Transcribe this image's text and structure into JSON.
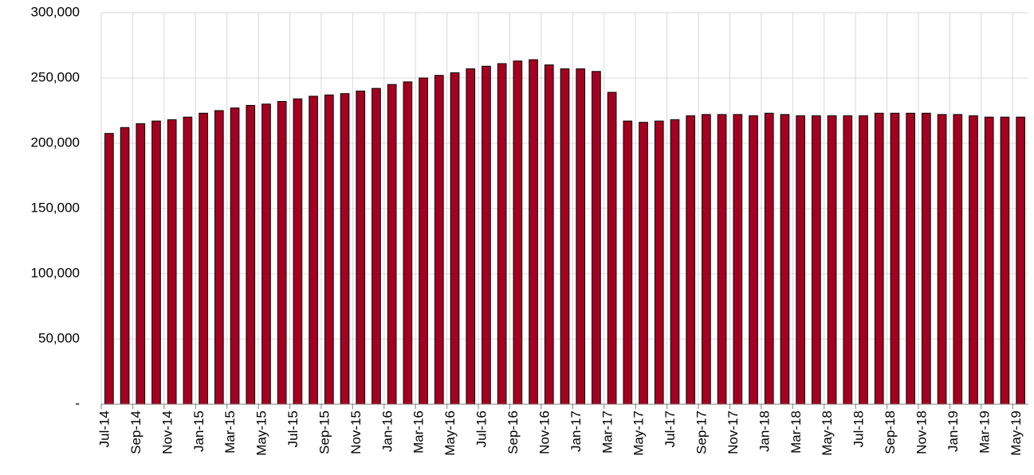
{
  "chart_data": {
    "type": "bar",
    "categories": [
      "Jul-14",
      null,
      "Sep-14",
      null,
      "Nov-14",
      null,
      "Jan-15",
      null,
      "Mar-15",
      null,
      "May-15",
      null,
      "Jul-15",
      null,
      "Sep-15",
      null,
      "Nov-15",
      null,
      "Jan-16",
      null,
      "Mar-16",
      null,
      "May-16",
      null,
      "Jul-16",
      null,
      "Sep-16",
      null,
      "Nov-16",
      null,
      "Jan-17",
      null,
      "Mar-17",
      null,
      "May-17",
      null,
      "Jul-17",
      null,
      "Sep-17",
      null,
      "Nov-17",
      null,
      "Jan-18",
      null,
      "Mar-18",
      null,
      "May-18",
      null,
      "Jul-18",
      null,
      "Sep-18",
      null,
      "Nov-18",
      null,
      "Jan-19",
      null,
      "Mar-19",
      null,
      "May-19"
    ],
    "values": [
      207500,
      212000,
      215000,
      217000,
      218000,
      220000,
      223000,
      225000,
      227000,
      229000,
      230000,
      232000,
      234000,
      236000,
      237000,
      238000,
      240000,
      242000,
      245000,
      247000,
      250000,
      252000,
      254000,
      257000,
      259000,
      261000,
      263000,
      264000,
      260000,
      257000,
      257000,
      255000,
      239000,
      217000,
      216000,
      217000,
      218000,
      221000,
      222000,
      222000,
      222000,
      221000,
      223000,
      222000,
      221000,
      221000,
      221000,
      221000,
      221000,
      223000,
      223000,
      223000,
      223000,
      222000,
      222000,
      221000,
      220000,
      220000,
      220000
    ],
    "color": "#a50021",
    "ylim": [
      0,
      300000
    ],
    "yticks": [
      {
        "value": 0,
        "label": "-"
      },
      {
        "value": 50000,
        "label": "50,000"
      },
      {
        "value": 100000,
        "label": "100,000"
      },
      {
        "value": 150000,
        "label": "150,000"
      },
      {
        "value": 200000,
        "label": "200,000"
      },
      {
        "value": 250000,
        "label": "250,000"
      },
      {
        "value": 300000,
        "label": "300,000"
      }
    ],
    "grid": true
  }
}
